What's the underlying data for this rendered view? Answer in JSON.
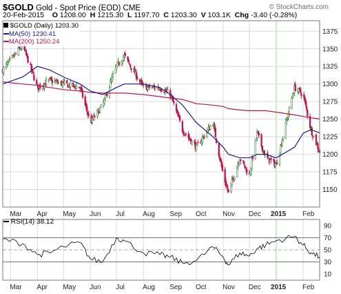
{
  "header": {
    "symbol": "$GOLD",
    "description": "Gold - Spot Price (EOD)",
    "exchange": "CME",
    "watermark": "© StockCharts.com",
    "date": "20-Feb-2015",
    "open_label": "O",
    "open": "1208.00",
    "high_label": "H",
    "high": "1215.30",
    "low_label": "L",
    "low": "1197.70",
    "close_label": "C",
    "close": "1203.30",
    "volume_label": "V",
    "volume": "103.1K",
    "change_label": "Chg",
    "change": "-3.40 (-0.28%)"
  },
  "legend": [
    {
      "label": "$GOLD (Daily) 1203.30",
      "color": "#000000"
    },
    {
      "label": "MA(50) 1230.41",
      "color": "#1a1a8c"
    },
    {
      "label": "MA(200) 1250.24",
      "color": "#c0134a"
    }
  ],
  "rsi_legend": "RSI(14) 38.12",
  "x_tick_labels": [
    "Mar",
    "Apr",
    "May",
    "Jun",
    "Jul",
    "Aug",
    "Sep",
    "Oct",
    "Nov",
    "Dec",
    "2015",
    "Feb"
  ],
  "x_tick_labels_rsi": [
    "Mar",
    "Apr",
    "May",
    "Jun",
    "Jul",
    "Aug",
    "Sep",
    "Oct",
    "Nov",
    "Dec",
    "2015",
    "Feb"
  ],
  "colors": {
    "up": "#1a7a1a",
    "down": "#c0134a",
    "ma50": "#1a1a8c",
    "ma200": "#c0134a",
    "grid": "#d8d8d8",
    "rsi_line": "#000000",
    "rsi_fill": "#999999"
  },
  "chart_data": [
    {
      "type": "line",
      "title": "$GOLD Gold - Spot Price (EOD) CME",
      "x": [
        "2014-02-20",
        "2014-03-15",
        "2014-04-01",
        "2014-04-15",
        "2014-05-01",
        "2014-05-20",
        "2014-06-01",
        "2014-06-15",
        "2014-07-01",
        "2014-07-10",
        "2014-08-01",
        "2014-08-20",
        "2014-09-01",
        "2014-09-15",
        "2014-10-01",
        "2014-10-20",
        "2014-11-01",
        "2014-11-07",
        "2014-11-20",
        "2014-12-01",
        "2014-12-10",
        "2014-12-20",
        "2015-01-01",
        "2015-01-22",
        "2015-02-01",
        "2015-02-10",
        "2015-02-20"
      ],
      "ylim": [
        1125,
        1390
      ],
      "y_ticks": [
        1150,
        1175,
        1200,
        1225,
        1250,
        1275,
        1300,
        1325,
        1350,
        1375
      ],
      "series": [
        {
          "name": "$GOLD (Daily) 1203.30",
          "values": [
            1320,
            1355,
            1295,
            1305,
            1300,
            1295,
            1245,
            1270,
            1325,
            1340,
            1295,
            1295,
            1285,
            1235,
            1210,
            1245,
            1170,
            1145,
            1195,
            1170,
            1230,
            1195,
            1185,
            1295,
            1285,
            1235,
            1203.3
          ]
        },
        {
          "name": "MA(50) 1230.41",
          "values": [
            1300,
            1310,
            1325,
            1320,
            1310,
            1300,
            1290,
            1285,
            1295,
            1300,
            1300,
            1295,
            1285,
            1270,
            1245,
            1225,
            1210,
            1200,
            1195,
            1195,
            1200,
            1200,
            1195,
            1210,
            1230,
            1235,
            1230.41
          ]
        },
        {
          "name": "MA(200) 1250.24",
          "values": [
            1303,
            1300,
            1298,
            1295,
            1292,
            1290,
            1288,
            1287,
            1287,
            1287,
            1285,
            1282,
            1280,
            1278,
            1272,
            1270,
            1268,
            1265,
            1263,
            1262,
            1262,
            1262,
            1260,
            1256,
            1254,
            1252,
            1250.24
          ]
        }
      ]
    },
    {
      "type": "line",
      "title": "RSI(14) 38.12",
      "ylim": [
        0,
        100
      ],
      "y_ticks": [
        10,
        30,
        50,
        70,
        90
      ],
      "reference_lines": [
        30,
        50,
        70
      ],
      "series": [
        {
          "name": "RSI(14) 38.12",
          "values": [
            68,
            60,
            42,
            45,
            55,
            62,
            35,
            30,
            70,
            65,
            45,
            42,
            38,
            28,
            32,
            55,
            38,
            25,
            45,
            40,
            52,
            58,
            65,
            72,
            58,
            45,
            38.12
          ]
        }
      ]
    }
  ]
}
